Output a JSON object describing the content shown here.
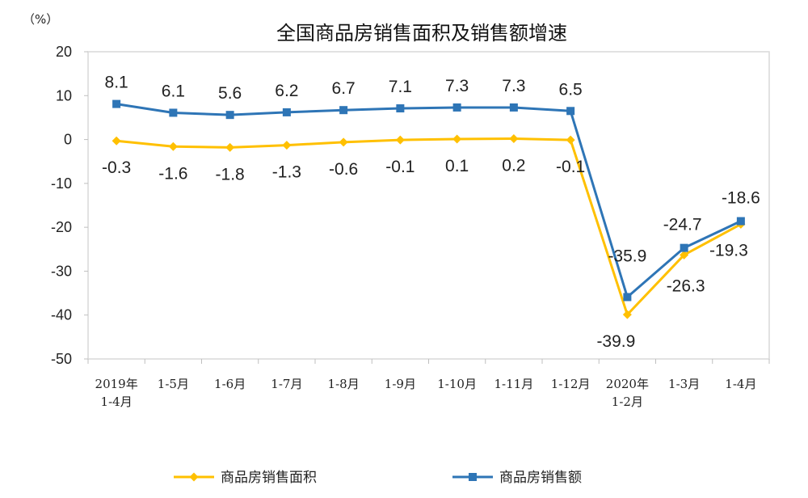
{
  "chart_data": {
    "type": "line",
    "title": "全国商品房销售面积及销售额增速",
    "unit": "（%）",
    "ylim": [
      -50,
      20
    ],
    "yticks": [
      20,
      10,
      0,
      -10,
      -20,
      -30,
      -40,
      -50
    ],
    "grid": false,
    "legend_position": "bottom",
    "categories": [
      [
        "2019年",
        "1-4月"
      ],
      [
        "1-5月"
      ],
      [
        "1-6月"
      ],
      [
        "1-7月"
      ],
      [
        "1-8月"
      ],
      [
        "1-9月"
      ],
      [
        "1-10月"
      ],
      [
        "1-11月"
      ],
      [
        "1-12月"
      ],
      [
        "2020年",
        "1-2月"
      ],
      [
        "1-3月"
      ],
      [
        "1-4月"
      ]
    ],
    "series": [
      {
        "name": "商品房销售面积",
        "color": "#FFC000",
        "marker": "diamond",
        "values": [
          -0.3,
          -1.6,
          -1.8,
          -1.3,
          -0.6,
          -0.1,
          0.1,
          0.2,
          -0.1,
          -39.9,
          -26.3,
          -19.3
        ]
      },
      {
        "name": "商品房销售额",
        "color": "#2E75B6",
        "marker": "square",
        "values": [
          8.1,
          6.1,
          5.6,
          6.2,
          6.7,
          7.1,
          7.3,
          7.3,
          6.5,
          -35.9,
          -24.7,
          -18.6
        ]
      }
    ]
  }
}
